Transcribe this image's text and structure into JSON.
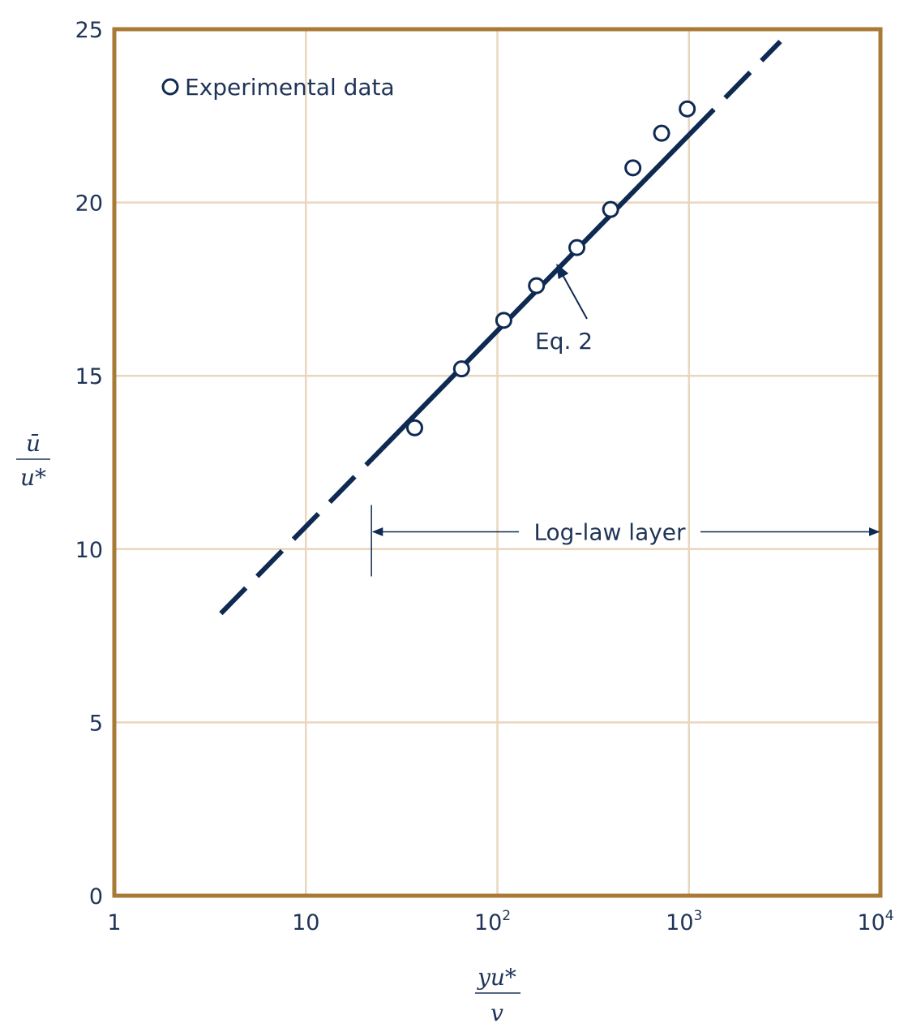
{
  "chart_data": {
    "type": "scatter",
    "xscale": "log",
    "xlim": [
      1,
      10000
    ],
    "ylim": [
      0,
      25
    ],
    "grid": true,
    "x_ticks": [
      {
        "base": "1",
        "exp": ""
      },
      {
        "base": "10",
        "exp": ""
      },
      {
        "base": "10",
        "exp": "2"
      },
      {
        "base": "10",
        "exp": "3"
      },
      {
        "base": "10",
        "exp": "4"
      }
    ],
    "y_ticks": [
      "0",
      "5",
      "10",
      "15",
      "20",
      "25"
    ],
    "xlabel": {
      "numerator": "yu*",
      "denominator": "v"
    },
    "ylabel": {
      "numerator": "ū",
      "denominator": "u*"
    },
    "legend": {
      "label": "Experimental data",
      "position": "top-left"
    },
    "series": [
      {
        "name": "Experimental data",
        "x": [
          37,
          65,
          108,
          160,
          260,
          390,
          510,
          720,
          980
        ],
        "y": [
          13.5,
          15.2,
          16.6,
          17.6,
          18.7,
          19.8,
          21.0,
          22.0,
          22.7
        ]
      }
    ],
    "fit_line": {
      "label": "Eq. 2",
      "solid_range": [
        25,
        1000
      ],
      "dashed_ranges": [
        [
          3.6,
          25
        ],
        [
          1000,
          3000
        ]
      ],
      "y_at_x1": 5.0,
      "slope_per_decade": 5.65
    },
    "annotations": {
      "eq_label": "Eq. 2",
      "region_label": "Log-law layer",
      "region_start_x": 22,
      "region_end_x": 10000,
      "region_y": 10.5,
      "eq_target": {
        "x": 205,
        "y": 18.2
      }
    },
    "colors": {
      "frame": "#a97a35",
      "grid": "#e9d7bd",
      "line": "#0e2a52",
      "text": "#1f3458"
    }
  }
}
